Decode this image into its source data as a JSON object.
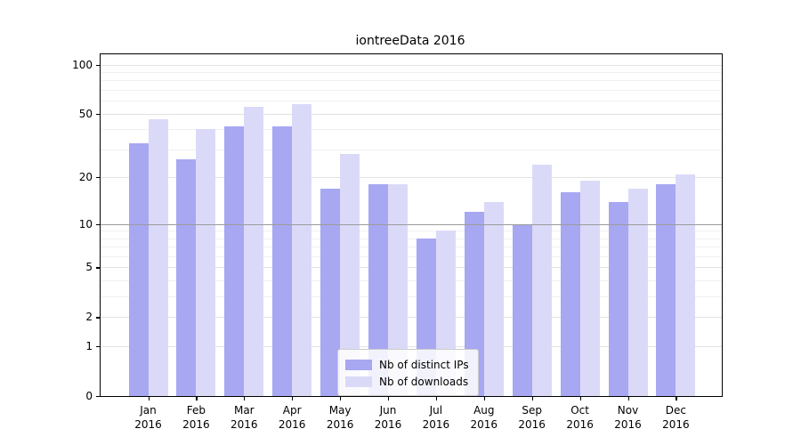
{
  "title": "iontreeData 2016",
  "chart_data": {
    "type": "bar",
    "title": "iontreeData 2016",
    "months": [
      "Jan",
      "Feb",
      "Mar",
      "Apr",
      "May",
      "Jun",
      "Jul",
      "Aug",
      "Sep",
      "Oct",
      "Nov",
      "Dec"
    ],
    "year": "2016",
    "series": [
      {
        "name": "Nb of distinct IPs",
        "color": "#a7a7f2",
        "values": [
          33,
          26,
          42,
          42,
          17,
          18,
          8,
          12,
          10,
          16,
          14,
          18
        ]
      },
      {
        "name": "Nb of downloads",
        "color": "#dadaf8",
        "values": [
          46,
          40,
          55,
          57,
          28,
          18,
          9,
          14,
          24,
          19,
          17,
          21
        ]
      }
    ],
    "yscale": "log10(value+1)",
    "ylim": [
      0,
      115
    ],
    "y_ticks": [
      {
        "label": "100",
        "value": 100
      },
      {
        "label": "50",
        "value": 50
      },
      {
        "label": "20",
        "value": 20
      },
      {
        "label": "10",
        "value": 10
      },
      {
        "label": "5",
        "value": 5
      },
      {
        "label": "2",
        "value": 2
      },
      {
        "label": "1",
        "value": 1
      },
      {
        "label": "0",
        "value": 0
      }
    ],
    "minor_gridline_values": [
      3,
      4,
      6,
      7,
      8,
      9,
      30,
      40,
      60,
      70,
      80,
      90
    ],
    "reference_line_value": 10,
    "grid": true,
    "legend_position": "lower center"
  }
}
